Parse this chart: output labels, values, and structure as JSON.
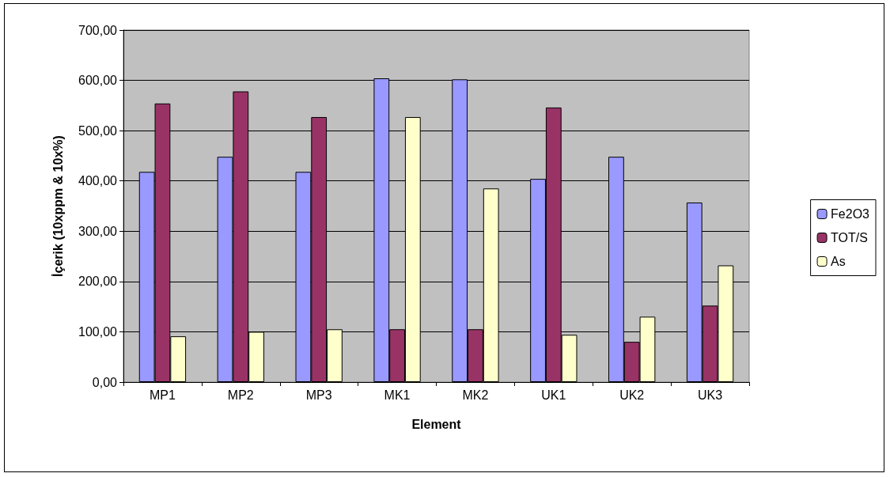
{
  "chart_data": {
    "type": "bar",
    "xlabel": "Element",
    "ylabel": "İçerik (10xppm & 10x%)",
    "categories": [
      "MP1",
      "MP2",
      "MP3",
      "MK1",
      "MK2",
      "UK1",
      "UK2",
      "UK3"
    ],
    "series": [
      {
        "name": "Fe2O3",
        "color": "#9999ff",
        "values": [
          418,
          448,
          418,
          604,
          602,
          404,
          448,
          357
        ]
      },
      {
        "name": "TOT/S",
        "color": "#993366",
        "values": [
          554,
          578,
          527,
          105,
          105,
          546,
          80,
          152
        ]
      },
      {
        "name": "As",
        "color": "#ffffcc",
        "values": [
          91,
          100,
          105,
          527,
          385,
          94,
          130,
          232
        ]
      }
    ],
    "ylim": [
      0,
      700
    ],
    "yticks": [
      {
        "value": 0,
        "label": "0,00"
      },
      {
        "value": 100,
        "label": "100,00"
      },
      {
        "value": 200,
        "label": "200,00"
      },
      {
        "value": 300,
        "label": "300,00"
      },
      {
        "value": 400,
        "label": "400,00"
      },
      {
        "value": 500,
        "label": "500,00"
      },
      {
        "value": 600,
        "label": "600,00"
      },
      {
        "value": 700,
        "label": "700,00"
      }
    ],
    "grid": "y",
    "legend": "right"
  }
}
